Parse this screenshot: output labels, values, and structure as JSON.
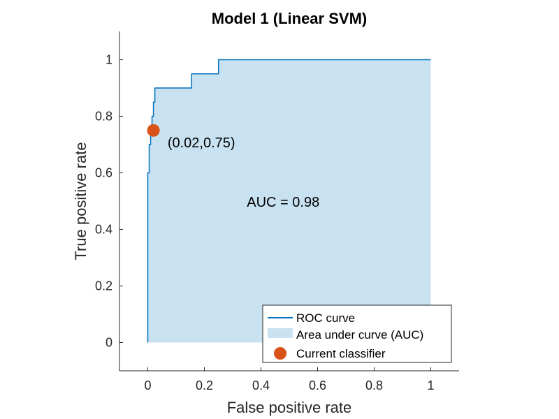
{
  "chart_data": {
    "type": "line",
    "title": "Model 1 (Linear SVM)",
    "xlabel": "False positive rate",
    "ylabel": "True positive rate",
    "xlim": [
      -0.1,
      1.1
    ],
    "ylim": [
      -0.1,
      1.1
    ],
    "xticks": [
      0,
      0.2,
      0.4,
      0.6,
      0.8,
      1
    ],
    "xtick_labels": [
      "0",
      "0.2",
      "0.4",
      "0.6",
      "0.8",
      "1"
    ],
    "yticks": [
      0,
      0.2,
      0.4,
      0.6,
      0.8,
      1
    ],
    "ytick_labels": [
      "0",
      "0.2",
      "0.4",
      "0.6",
      "0.8",
      "1"
    ],
    "grid": false,
    "legend_position": "bottom-right",
    "series": [
      {
        "name": "ROC curve",
        "color": "#0072BD",
        "x": [
          0,
          0,
          0.005,
          0.005,
          0.01,
          0.01,
          0.015,
          0.015,
          0.02,
          0.02,
          0.025,
          0.025,
          0.03,
          0.03,
          0.155,
          0.155,
          0.25,
          0.25,
          1
        ],
        "y": [
          0,
          0.6,
          0.6,
          0.7,
          0.7,
          0.75,
          0.75,
          0.8,
          0.8,
          0.85,
          0.85,
          0.9,
          0.9,
          0.9,
          0.9,
          0.95,
          0.95,
          1,
          1
        ]
      },
      {
        "name": "Area under curve (AUC)",
        "type": "area",
        "color": "#C9E2F1"
      },
      {
        "name": "Current classifier",
        "type": "scatter",
        "color": "#D95319",
        "points": [
          [
            0.02,
            0.75
          ]
        ]
      }
    ],
    "annotations": [
      {
        "text": "(0.02,0.75)",
        "x": 0.07,
        "y": 0.69
      },
      {
        "text": "AUC = 0.98",
        "x": 0.35,
        "y": 0.48
      }
    ]
  }
}
